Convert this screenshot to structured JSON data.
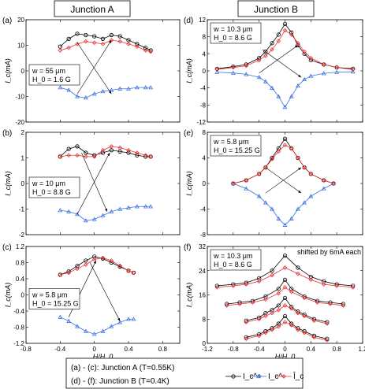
{
  "colors": {
    "ic_plus": "#000000",
    "ic_minus": "#3a6fe0",
    "ic_hat": "#e83030"
  },
  "headers": {
    "junction_a": "Junction A",
    "junction_b": "Junction B"
  },
  "shared": {
    "ylabel": "I_c(mA)",
    "xlabel": "H/H_0"
  },
  "legend": {
    "line1": "(a) - (c): Junction A (T=0.55K)",
    "line2": "(d) - (f): Junction B (T=0.4K)",
    "entries": [
      {
        "label": "I_c^+",
        "color": "#000000",
        "marker": "circle"
      },
      {
        "label": "I_c^-",
        "color": "#3a6fe0",
        "marker": "triangle"
      },
      {
        "label": "Î_c",
        "color": "#e83030",
        "marker": "diamond"
      }
    ]
  },
  "chart_data": [
    {
      "id": "a",
      "type": "line",
      "panel_label": "(a)",
      "info": [
        "w = 55 μm",
        "H_0 = 1.6 G"
      ],
      "xlim": [
        -0.8,
        1.0
      ],
      "ylim": [
        -20,
        20
      ],
      "yticks": [
        -20,
        -10,
        0,
        10,
        20
      ],
      "xticks": [
        -0.8,
        -0.4,
        0,
        0.4,
        0.8
      ],
      "series": [
        {
          "kind": "ic_plus",
          "x": [
            -0.4,
            -0.3,
            -0.2,
            -0.1,
            0.0,
            0.1,
            0.2,
            0.3,
            0.4,
            0.5,
            0.6,
            0.66
          ],
          "y": [
            9.5,
            12.5,
            14.5,
            14,
            13.5,
            12.5,
            14,
            13.5,
            12,
            10.5,
            9,
            8
          ]
        },
        {
          "kind": "ic_minus",
          "x": [
            -0.4,
            -0.3,
            -0.2,
            -0.1,
            0.0,
            0.1,
            0.2,
            0.3,
            0.4,
            0.5,
            0.6,
            0.66
          ],
          "y": [
            -6.5,
            -7.5,
            -10,
            -10.5,
            -9,
            -8,
            -7.5,
            -7,
            -7,
            -6.5,
            -6.5,
            -6.5
          ]
        },
        {
          "kind": "ic_hat",
          "x": [
            -0.4,
            -0.3,
            -0.2,
            -0.1,
            0.0,
            0.1,
            0.2,
            0.3,
            0.4,
            0.5,
            0.6,
            0.66
          ],
          "y": [
            8,
            9,
            10.5,
            11.5,
            11,
            10.5,
            12,
            11.5,
            10.5,
            9.5,
            8,
            7.5
          ]
        }
      ]
    },
    {
      "id": "b",
      "type": "line",
      "panel_label": "(b)",
      "info": [
        "w = 10 μm",
        "H_0 = 8.8 G"
      ],
      "xlim": [
        -0.8,
        1.0
      ],
      "ylim": [
        -2,
        2
      ],
      "yticks": [
        -2,
        -1,
        0,
        1,
        2
      ],
      "xticks": [
        -0.8,
        -0.4,
        0,
        0.4,
        0.8
      ],
      "series": [
        {
          "kind": "ic_plus",
          "x": [
            -0.4,
            -0.3,
            -0.2,
            -0.1,
            0.0,
            0.1,
            0.2,
            0.3,
            0.4,
            0.5,
            0.6,
            0.66
          ],
          "y": [
            1.05,
            1.35,
            1.45,
            1.2,
            1.1,
            1.2,
            1.3,
            1.25,
            1.2,
            1.1,
            1.05,
            1.05
          ]
        },
        {
          "kind": "ic_minus",
          "x": [
            -0.4,
            -0.3,
            -0.2,
            -0.1,
            0.0,
            0.1,
            0.2,
            0.3,
            0.4,
            0.5,
            0.6,
            0.66
          ],
          "y": [
            -1.05,
            -1.1,
            -1.2,
            -1.45,
            -1.4,
            -1.25,
            -1.1,
            -1.0,
            -0.95,
            -0.9,
            -0.9,
            -0.9
          ]
        },
        {
          "kind": "ic_hat",
          "x": [
            -0.4,
            -0.3,
            -0.2,
            -0.1,
            0.0,
            0.1,
            0.2,
            0.3,
            0.4,
            0.5,
            0.6,
            0.66
          ],
          "y": [
            1.05,
            1.1,
            1.1,
            1.05,
            1.05,
            1.3,
            1.45,
            1.4,
            1.3,
            1.2,
            1.1,
            1.05
          ]
        }
      ]
    },
    {
      "id": "c",
      "type": "line",
      "panel_label": "(c)",
      "info": [
        "w = 5.8 μm",
        "H_0 = 15.25 G"
      ],
      "xlim": [
        -0.8,
        1.0
      ],
      "ylim": [
        -1.2,
        1.2
      ],
      "yticks": [
        -1.2,
        -0.8,
        -0.4,
        0.0,
        0.4,
        0.8,
        1.2
      ],
      "xticks": [
        -0.8,
        -0.4,
        0,
        0.4,
        0.8
      ],
      "series": [
        {
          "kind": "ic_plus",
          "x": [
            -0.4,
            -0.3,
            -0.2,
            -0.1,
            0.0,
            0.1,
            0.2,
            0.3,
            0.4,
            0.46
          ],
          "y": [
            0.5,
            0.58,
            0.72,
            0.85,
            0.95,
            0.9,
            0.8,
            0.7,
            0.6,
            0.55
          ]
        },
        {
          "kind": "ic_minus",
          "x": [
            -0.4,
            -0.3,
            -0.2,
            -0.1,
            0.0,
            0.1,
            0.2,
            0.3,
            0.4,
            0.46
          ],
          "y": [
            -0.55,
            -0.65,
            -0.78,
            -0.9,
            -0.97,
            -0.9,
            -0.78,
            -0.68,
            -0.6,
            -0.6
          ]
        },
        {
          "kind": "ic_hat",
          "x": [
            -0.4,
            -0.3,
            -0.2,
            -0.1,
            0.0,
            0.1,
            0.2,
            0.3,
            0.4,
            0.46
          ],
          "y": [
            0.5,
            0.55,
            0.65,
            0.75,
            0.88,
            0.92,
            0.85,
            0.72,
            0.6,
            0.55
          ]
        }
      ]
    },
    {
      "id": "d",
      "type": "line",
      "panel_label": "(d)",
      "info": [
        "w = 10.3 μm",
        "H_0 = 8.6 G"
      ],
      "xlim": [
        -1.2,
        1.2
      ],
      "ylim": [
        -12,
        12
      ],
      "yticks": [
        -12,
        -8,
        -4,
        0,
        4,
        8,
        12
      ],
      "xticks": [
        -1.2,
        -0.8,
        -0.4,
        0,
        0.4,
        0.8,
        1.2
      ],
      "series": [
        {
          "kind": "ic_plus",
          "x": [
            -1.05,
            -0.8,
            -0.6,
            -0.4,
            -0.3,
            -0.2,
            -0.1,
            0.0,
            0.1,
            0.2,
            0.3,
            0.4,
            0.6,
            0.8,
            1.05
          ],
          "y": [
            0.5,
            1,
            1.5,
            3,
            4.5,
            6.5,
            8.5,
            11,
            9,
            6,
            4,
            2.5,
            1.5,
            0.8,
            0.5
          ]
        },
        {
          "kind": "ic_minus",
          "x": [
            -1.05,
            -0.8,
            -0.6,
            -0.4,
            -0.3,
            -0.2,
            -0.1,
            0.0,
            0.1,
            0.2,
            0.3,
            0.4,
            0.6,
            0.8,
            1.05
          ],
          "y": [
            -0.3,
            -0.5,
            -0.8,
            -1.5,
            -2.5,
            -4,
            -6,
            -8.5,
            -6,
            -3.5,
            -2,
            -1.2,
            -0.6,
            -0.3,
            -0.2
          ]
        },
        {
          "kind": "ic_hat",
          "x": [
            -1.05,
            -0.8,
            -0.6,
            -0.4,
            -0.3,
            -0.2,
            -0.1,
            0.0,
            0.1,
            0.2,
            0.3,
            0.4,
            0.6,
            0.8,
            1.05
          ],
          "y": [
            0.3,
            0.8,
            1.2,
            2.5,
            3.5,
            5,
            7,
            9.5,
            8.5,
            6.5,
            4.5,
            3,
            1.5,
            0.8,
            0.3
          ]
        }
      ]
    },
    {
      "id": "e",
      "type": "line",
      "panel_label": "(e)",
      "info": [
        "w = 5.8 μm",
        "H_0 = 15.25 G"
      ],
      "xlim": [
        -1.2,
        1.2
      ],
      "ylim": [
        -8,
        8
      ],
      "yticks": [
        -8,
        -4,
        0,
        4,
        8
      ],
      "xticks": [
        -1.2,
        -0.8,
        -0.4,
        0,
        0.4,
        0.8,
        1.2
      ],
      "series": [
        {
          "kind": "ic_plus",
          "x": [
            -0.8,
            -0.6,
            -0.4,
            -0.3,
            -0.2,
            -0.1,
            0.0,
            0.1,
            0.2,
            0.3,
            0.4,
            0.6,
            0.75
          ],
          "y": [
            0,
            0.5,
            1.5,
            2.5,
            4,
            5.5,
            7,
            5.5,
            4,
            2.5,
            1.5,
            0.5,
            0
          ]
        },
        {
          "kind": "ic_minus",
          "x": [
            -0.8,
            -0.6,
            -0.4,
            -0.3,
            -0.2,
            -0.1,
            0.0,
            0.1,
            0.2,
            0.3,
            0.4,
            0.6,
            0.75
          ],
          "y": [
            0,
            -0.8,
            -2,
            -3,
            -4,
            -5.5,
            -6.5,
            -5.5,
            -4,
            -3,
            -2,
            -0.8,
            0
          ]
        },
        {
          "kind": "ic_hat",
          "x": [
            -0.8,
            -0.6,
            -0.4,
            -0.3,
            -0.2,
            -0.1,
            0.0,
            0.1,
            0.2,
            0.3,
            0.4,
            0.6,
            0.75
          ],
          "y": [
            0,
            0.5,
            1.5,
            2.5,
            3.8,
            5,
            6,
            5.5,
            4,
            2.5,
            1.5,
            0.5,
            0
          ]
        }
      ]
    },
    {
      "id": "f",
      "type": "line",
      "panel_label": "(f)",
      "info": [
        "w = 10.3 μm",
        "H_0 = 8.6 G"
      ],
      "note": "shifted by 6mA each",
      "xlim": [
        -1.2,
        1.2
      ],
      "ylim": [
        0,
        32
      ],
      "yticks": [
        0,
        8,
        16,
        24,
        32
      ],
      "xticks": [
        -1.2,
        -0.8,
        -0.4,
        0,
        0.4,
        0.8,
        1.2
      ],
      "series": [
        {
          "kind": "ic_plus",
          "x": [
            -1.05,
            -0.8,
            -0.6,
            -0.4,
            -0.2,
            0.0,
            0.2,
            0.4,
            0.6,
            0.8,
            1.05
          ],
          "y": [
            19,
            19.5,
            20,
            21.5,
            24,
            29,
            25,
            22,
            20.5,
            19.5,
            19
          ]
        },
        {
          "kind": "ic_hat",
          "x": [
            -1.05,
            -0.8,
            -0.6,
            -0.4,
            -0.2,
            0.0,
            0.2,
            0.4,
            0.6,
            0.8,
            1.05
          ],
          "y": [
            18.5,
            19,
            19.5,
            20.5,
            22.5,
            25,
            23,
            21,
            19.5,
            19,
            18.5
          ]
        },
        {
          "kind": "ic_plus",
          "x": [
            -0.9,
            -0.7,
            -0.5,
            -0.3,
            -0.1,
            0.0,
            0.1,
            0.3,
            0.5,
            0.7,
            0.9
          ],
          "y": [
            13,
            13.5,
            14,
            15.5,
            18,
            21,
            18,
            15.5,
            14,
            13.5,
            13
          ]
        },
        {
          "kind": "ic_hat",
          "x": [
            -0.9,
            -0.7,
            -0.5,
            -0.3,
            -0.1,
            0.0,
            0.1,
            0.3,
            0.5,
            0.7,
            0.9
          ],
          "y": [
            12.5,
            13,
            13.5,
            14.5,
            16.5,
            18.5,
            17,
            15,
            13.5,
            13,
            12.5
          ]
        },
        {
          "kind": "ic_plus",
          "x": [
            -0.6,
            -0.4,
            -0.3,
            -0.2,
            -0.1,
            0.0,
            0.1,
            0.2,
            0.3,
            0.45,
            0.65
          ],
          "y": [
            7.5,
            8.5,
            10,
            11,
            12.5,
            15,
            12,
            10.5,
            9.5,
            8,
            7
          ]
        },
        {
          "kind": "ic_hat",
          "x": [
            -0.6,
            -0.4,
            -0.3,
            -0.2,
            -0.1,
            0.0,
            0.1,
            0.2,
            0.3,
            0.45,
            0.65
          ],
          "y": [
            7,
            8,
            9,
            10,
            11,
            12.5,
            11.5,
            10,
            9,
            7.5,
            6.5
          ]
        },
        {
          "kind": "ic_plus",
          "x": [
            -0.6,
            -0.4,
            -0.3,
            -0.2,
            -0.1,
            0.0,
            0.1,
            0.2,
            0.3,
            0.45,
            0.65
          ],
          "y": [
            2,
            3,
            4,
            5,
            6.5,
            9,
            6.5,
            5,
            4,
            2.5,
            1.5
          ]
        },
        {
          "kind": "ic_hat",
          "x": [
            -0.6,
            -0.4,
            -0.3,
            -0.2,
            -0.1,
            0.0,
            0.1,
            0.2,
            0.3,
            0.45,
            0.65
          ],
          "y": [
            1.5,
            2.5,
            3.5,
            4.5,
            5.5,
            7,
            6,
            4.5,
            3.5,
            2,
            1
          ]
        }
      ]
    }
  ]
}
